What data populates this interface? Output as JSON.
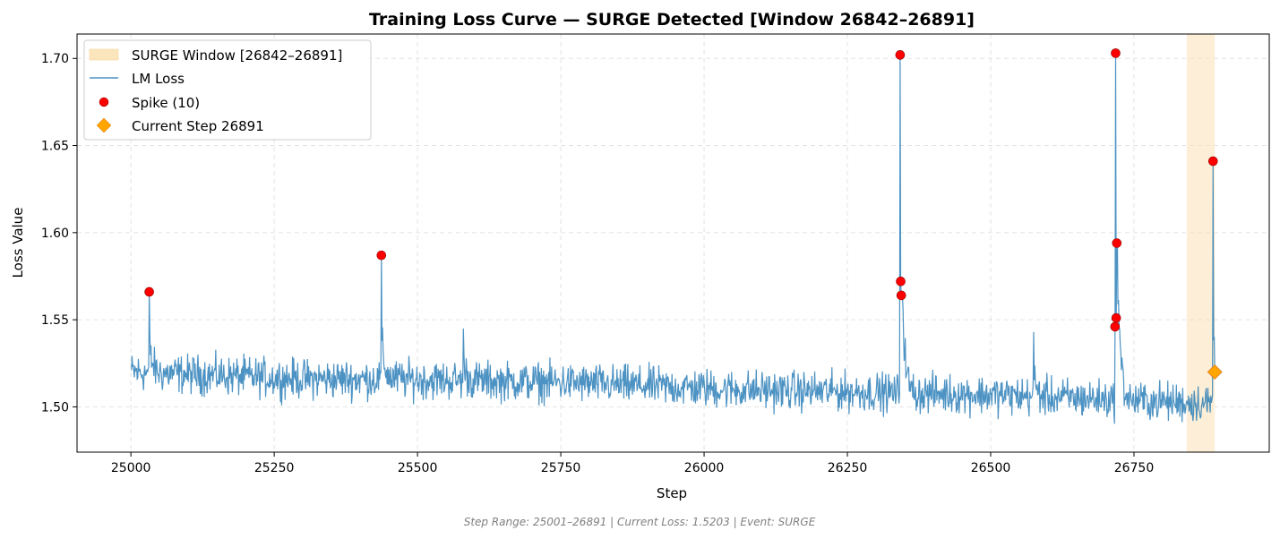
{
  "chart_data": {
    "type": "line",
    "title": "Training Loss Curve — SURGE Detected [Window 26842–26891]",
    "xlabel": "Step",
    "ylabel": "Loss Value",
    "xlim": [
      24906,
      26986
    ],
    "ylim": [
      1.474,
      1.714
    ],
    "x_ticks": [
      25000,
      25250,
      25500,
      25750,
      26000,
      26250,
      26500,
      26750
    ],
    "y_ticks": [
      1.5,
      1.55,
      1.6,
      1.65,
      1.7
    ],
    "x_tick_labels": [
      "25000",
      "25250",
      "25500",
      "25750",
      "26000",
      "26250",
      "26500",
      "26750"
    ],
    "y_tick_labels": [
      "1.50",
      "1.55",
      "1.60",
      "1.65",
      "1.70"
    ],
    "grid": true,
    "legend_position": "top-left",
    "colors": {
      "line": "#1f77b4",
      "spike": "#ff0000",
      "current": "#ffa500",
      "window": "#fbe5bd"
    },
    "surge_window": {
      "label": "SURGE Window [26842–26891]",
      "start": 26842,
      "end": 26891
    },
    "series": [
      {
        "name": "LM Loss",
        "baseline_points": [
          [
            25001,
            1.52
          ],
          [
            25150,
            1.518
          ],
          [
            25300,
            1.516
          ],
          [
            25450,
            1.516
          ],
          [
            25600,
            1.515
          ],
          [
            25750,
            1.514
          ],
          [
            25900,
            1.512
          ],
          [
            26050,
            1.51
          ],
          [
            26200,
            1.509
          ],
          [
            26340,
            1.508
          ],
          [
            26500,
            1.507
          ],
          [
            26650,
            1.505
          ],
          [
            26800,
            1.503
          ],
          [
            26891,
            1.502
          ]
        ],
        "key_points": [
          [
            25032,
            1.566
          ],
          [
            25437,
            1.587
          ],
          [
            25580,
            1.545
          ],
          [
            26342,
            1.702
          ],
          [
            26343,
            1.572
          ],
          [
            26344,
            1.564
          ],
          [
            26575,
            1.543
          ],
          [
            26717,
            1.546
          ],
          [
            26718,
            1.703
          ],
          [
            26719,
            1.551
          ],
          [
            26720,
            1.594
          ],
          [
            26888,
            1.641
          ],
          [
            26891,
            1.52
          ]
        ]
      }
    ],
    "spikes": {
      "name": "Spike (10)",
      "points": [
        [
          25032,
          1.566
        ],
        [
          25437,
          1.587
        ],
        [
          26342,
          1.702
        ],
        [
          26343,
          1.572
        ],
        [
          26344,
          1.564
        ],
        [
          26717,
          1.546
        ],
        [
          26718,
          1.703
        ],
        [
          26719,
          1.551
        ],
        [
          26720,
          1.594
        ],
        [
          26888,
          1.641
        ]
      ]
    },
    "current_step": {
      "name": "Current Step 26891",
      "step": 26891,
      "value": 1.52
    },
    "footer": "Step Range: 25001–26891 | Current Loss: 1.5203 | Event: SURGE"
  }
}
